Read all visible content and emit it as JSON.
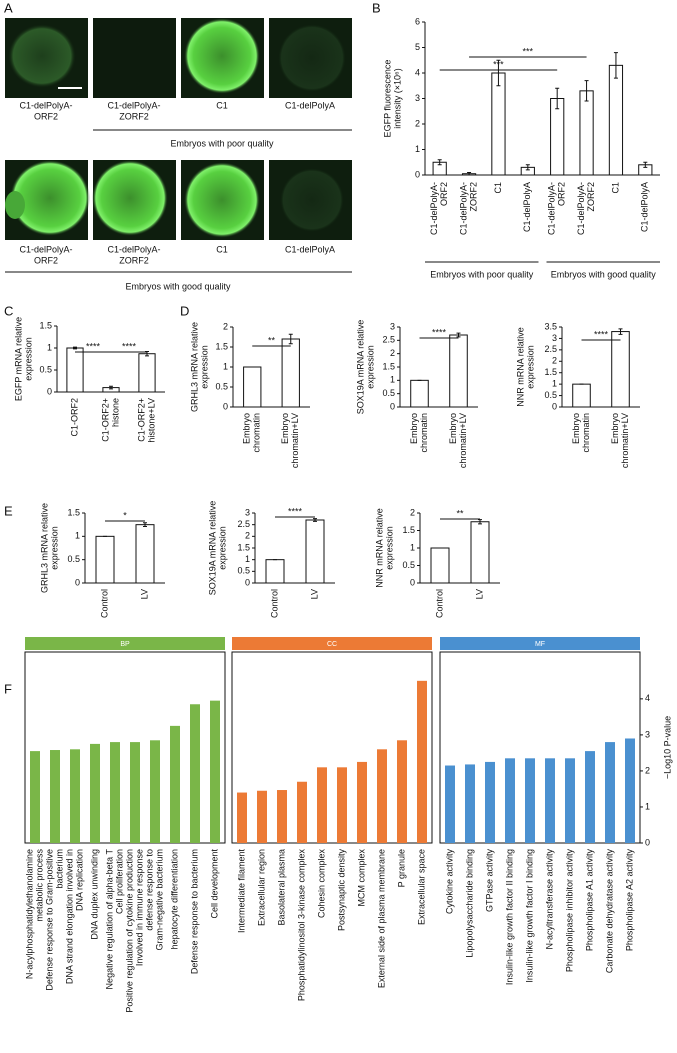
{
  "panel_labels": [
    "A",
    "B",
    "C",
    "D",
    "E",
    "F"
  ],
  "panel_a": {
    "images": [
      {
        "label": [
          "C1-delPolyA-",
          "ORF2"
        ]
      },
      {
        "label": [
          "C1-delPolyA-",
          "ZORF2"
        ]
      },
      {
        "label": [
          "C1"
        ]
      },
      {
        "label": [
          "C1-delPolyA"
        ]
      },
      {
        "label": [
          "C1-delPolyA-",
          "ORF2"
        ]
      },
      {
        "label": [
          "C1-delPolyA-",
          "ZORF2"
        ]
      },
      {
        "label": [
          "C1"
        ]
      },
      {
        "label": [
          "C1-delPolyA"
        ]
      }
    ],
    "groups": [
      "Embryos with poor quality",
      "Embryos with good quality"
    ]
  },
  "chart_data": [
    {
      "type": "bar",
      "ylabel": [
        "EGFP fluorescence",
        "intensity (×10⁶)"
      ],
      "categories": [
        [
          "C1-delPolyA-",
          "ORF2"
        ],
        [
          "C1-delPolyA-",
          "ZORF2"
        ],
        "C1",
        "C1-delPolyA",
        [
          "C1-delPolyA-",
          "ORF2"
        ],
        [
          "C1-delPolyA-",
          "ZORF2"
        ],
        "C1",
        "C1-delPolyA"
      ],
      "values": [
        0.5,
        0.05,
        4.0,
        0.3,
        3.0,
        3.3,
        4.3,
        0.4
      ],
      "errors": [
        0.1,
        0.05,
        0.5,
        0.1,
        0.4,
        0.4,
        0.5,
        0.1
      ],
      "ylim": [
        0,
        6
      ],
      "yticks": [
        0,
        1,
        2,
        3,
        4,
        5,
        6
      ],
      "color": "#ffffff",
      "significance": [
        "***",
        "***"
      ],
      "groups": [
        "Embryos with poor quality",
        "Embryos with good quality"
      ]
    },
    {
      "type": "bar",
      "ylabel": [
        "EGFP mRNA relative",
        "expression"
      ],
      "categories": [
        "C1-ORF2",
        [
          "C1-ORF2+",
          "histone"
        ],
        [
          "C1-ORF2+",
          "histone+LV"
        ]
      ],
      "values": [
        1,
        0.1,
        0.87
      ],
      "errors": [
        0.02,
        0.03,
        0.05
      ],
      "ylim": [
        0,
        1.5
      ],
      "yticks": [
        0,
        0.5,
        1,
        1.5
      ],
      "color": "#ffffff",
      "significance": [
        "****",
        "****"
      ]
    },
    {
      "type": "bar",
      "ylabel": [
        "GRHL3 mRNA relative",
        "expression"
      ],
      "categories": [
        [
          "Embryo",
          "chromatin"
        ],
        [
          "Embryo",
          "chromatin+LV"
        ]
      ],
      "values": [
        1,
        1.7
      ],
      "errors": [
        0,
        0.12
      ],
      "ylim": [
        0,
        2
      ],
      "yticks": [
        0,
        0.5,
        1,
        1.5,
        2
      ],
      "color": "#ffffff",
      "significance": [
        "**"
      ]
    },
    {
      "type": "bar",
      "ylabel": [
        "SOX19A mRNA relative",
        "expression"
      ],
      "categories": [
        [
          "Embryo",
          "chromatin"
        ],
        [
          "Embryo",
          "chromatin+LV"
        ]
      ],
      "values": [
        1,
        2.7
      ],
      "errors": [
        0,
        0.07
      ],
      "ylim": [
        0,
        3
      ],
      "yticks": [
        0,
        0.5,
        1,
        1.5,
        2,
        2.5,
        3
      ],
      "color": "#ffffff",
      "significance": [
        "****"
      ]
    },
    {
      "type": "bar",
      "ylabel": [
        "NNR mRNA relative",
        "expression"
      ],
      "categories": [
        [
          "Embryo",
          "chromatin"
        ],
        [
          "Embryo",
          "chromatin+LV"
        ]
      ],
      "values": [
        1,
        3.3
      ],
      "errors": [
        0,
        0.12
      ],
      "ylim": [
        0,
        3.5
      ],
      "yticks": [
        0,
        0.5,
        1,
        1.5,
        2,
        2.5,
        3,
        3.5
      ],
      "color": "#ffffff",
      "significance": [
        "****"
      ]
    },
    {
      "type": "bar",
      "ylabel": [
        "GRHL3 mRNA relative",
        "expression"
      ],
      "categories": [
        "Control",
        "LV"
      ],
      "values": [
        1,
        1.25
      ],
      "errors": [
        0,
        0.04
      ],
      "ylim": [
        0,
        1.5
      ],
      "yticks": [
        0,
        0.5,
        1,
        1.5
      ],
      "color": "#ffffff",
      "significance": [
        "*"
      ]
    },
    {
      "type": "bar",
      "ylabel": [
        "SOX19A mRNA relative",
        "expression"
      ],
      "categories": [
        "Control",
        "LV"
      ],
      "values": [
        1,
        2.7
      ],
      "errors": [
        0,
        0.06
      ],
      "ylim": [
        0,
        3
      ],
      "yticks": [
        0,
        0.5,
        1,
        1.5,
        2,
        2.5,
        3
      ],
      "color": "#ffffff",
      "significance": [
        "****"
      ]
    },
    {
      "type": "bar",
      "ylabel": [
        "NNR mRNA relative",
        "expression"
      ],
      "categories": [
        "Control",
        "LV"
      ],
      "values": [
        1,
        1.75
      ],
      "errors": [
        0,
        0.06
      ],
      "ylim": [
        0,
        2
      ],
      "yticks": [
        0,
        0.5,
        1,
        1.5,
        2
      ],
      "color": "#ffffff",
      "significance": [
        "**"
      ]
    },
    {
      "type": "bar",
      "title": "BP",
      "color": "#7ab648",
      "ylim": [
        0,
        5.3
      ],
      "categories": [
        [
          "N-acylphosphatidylethanolamine",
          "metabolic process"
        ],
        [
          "Defense response to Gram-positive",
          "bacterium"
        ],
        [
          "DNA strand elongation involved in",
          "DNA replication"
        ],
        "DNA duplex unwinding",
        [
          "Negative regulation of alpha-beta T",
          "Cell proliferation"
        ],
        [
          "Positive regulation of cytokine production",
          "Involved in immune response"
        ],
        [
          "defense response to",
          "Gram-negative bacterium"
        ],
        "hepatocyte differentiation",
        "Defense response to bacterium",
        "Cell development"
      ],
      "values": [
        2.55,
        2.58,
        2.6,
        2.75,
        2.8,
        2.8,
        2.85,
        3.25,
        3.85,
        3.95
      ]
    },
    {
      "type": "bar",
      "title": "CC",
      "color": "#ec7a35",
      "ylim": [
        0,
        5.3
      ],
      "categories": [
        "Intermediate filament",
        "Extracellular region",
        "Basolateral plasma",
        "Phosphatidylinositol 3-kinase complex",
        "Cohesin complex",
        "Postsynaptic density",
        "MCM complex",
        "External side of plasma membrane",
        "P granule",
        "Extracellular space"
      ],
      "values": [
        1.4,
        1.45,
        1.47,
        1.7,
        2.1,
        2.1,
        2.25,
        2.6,
        2.85,
        4.5
      ]
    },
    {
      "type": "bar",
      "title": "MF",
      "color": "#4a90d0",
      "ylim": [
        0,
        5.3
      ],
      "yticks": [
        0,
        1,
        2,
        3,
        4
      ],
      "ylabel": "−Log10 P-value",
      "categories": [
        "Cytokine activity",
        "Lipopolysaccharide binding",
        "GTPase activity",
        "Insulin-like growth factor II binding",
        "Insulin-like growth factor I binding",
        "N-acyltransferase activity",
        "Phospholipase inhibitor activity",
        "Phospholipase A1 activity",
        "Carbonate dehydratase activity",
        "Phospholipase A2 activity"
      ],
      "values": [
        2.15,
        2.18,
        2.25,
        2.35,
        2.35,
        2.35,
        2.35,
        2.55,
        2.8,
        2.9
      ]
    }
  ]
}
